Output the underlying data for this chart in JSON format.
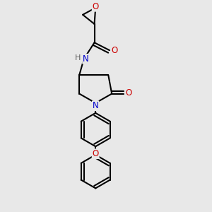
{
  "bg_color": "#e8e8e8",
  "bond_color": "#000000",
  "bond_lw": 1.5,
  "atom_O_color": "#cc0000",
  "atom_N_color": "#0000cc",
  "atom_H_color": "#606060",
  "font_size": 8.5,
  "fig_size": [
    3.0,
    3.0
  ],
  "dpi": 100,
  "xlim": [
    1.5,
    8.5
  ],
  "ylim": [
    0.5,
    9.5
  ]
}
